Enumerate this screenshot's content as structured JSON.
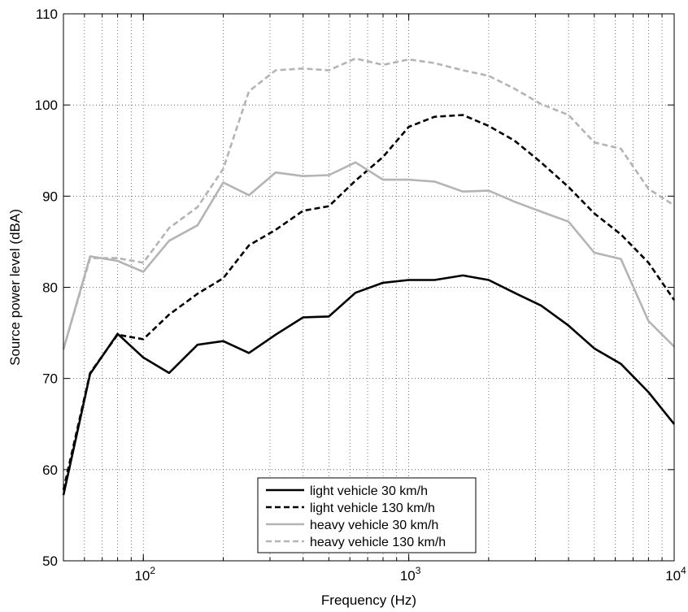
{
  "chart_data": {
    "type": "line",
    "xlabel": "Frequency (Hz)",
    "ylabel": "Source power level (dBA)",
    "xscale": "log",
    "xlim": [
      50,
      10000
    ],
    "ylim": [
      50,
      110
    ],
    "grid": true,
    "legend_position": "bottom-center",
    "x_ticks": [
      {
        "value": 100,
        "base": "10",
        "exp": "2"
      },
      {
        "value": 1000,
        "base": "10",
        "exp": "3"
      },
      {
        "value": 10000,
        "base": "10",
        "exp": "4"
      }
    ],
    "y_ticks": [
      50,
      60,
      70,
      80,
      90,
      100,
      110
    ],
    "x": [
      50,
      63,
      80,
      100,
      125,
      160,
      200,
      250,
      315,
      400,
      500,
      630,
      800,
      1000,
      1250,
      1600,
      2000,
      2500,
      3150,
      4000,
      5000,
      6300,
      8000,
      10000
    ],
    "series": [
      {
        "name": "light vehicle 30 km/h",
        "color": "#000000",
        "dash": "solid",
        "values": [
          57.2,
          70.5,
          74.9,
          72.3,
          70.6,
          73.7,
          74.1,
          72.8,
          74.8,
          76.7,
          76.8,
          79.4,
          80.5,
          80.8,
          80.8,
          81.3,
          80.8,
          79.4,
          78.0,
          75.8,
          73.3,
          71.6,
          68.5,
          65.0
        ]
      },
      {
        "name": "light vehicle 130 km/h",
        "color": "#000000",
        "dash": "dashed",
        "values": [
          57.8,
          70.6,
          74.8,
          74.3,
          77.0,
          79.3,
          81.0,
          84.6,
          86.3,
          88.4,
          88.9,
          91.7,
          94.3,
          97.6,
          98.7,
          98.9,
          97.7,
          96.1,
          93.7,
          91.0,
          88.1,
          85.8,
          82.7,
          78.6
        ]
      },
      {
        "name": "heavy vehicle 30 km/h",
        "color": "#b4b4b4",
        "dash": "solid",
        "values": [
          73.2,
          83.4,
          82.9,
          81.7,
          85.1,
          86.8,
          91.5,
          90.1,
          92.6,
          92.2,
          92.3,
          93.7,
          91.8,
          91.8,
          91.6,
          90.5,
          90.6,
          89.4,
          88.3,
          87.2,
          83.8,
          83.1,
          76.3,
          73.5
        ]
      },
      {
        "name": "heavy vehicle 130 km/h",
        "color": "#b4b4b4",
        "dash": "dashed",
        "values": [
          73.2,
          83.2,
          83.2,
          82.7,
          86.5,
          88.8,
          93.0,
          101.5,
          103.8,
          104.0,
          103.8,
          105.1,
          104.4,
          105.0,
          104.6,
          103.8,
          103.2,
          101.8,
          100.1,
          98.9,
          95.9,
          95.2,
          90.8,
          89.0
        ]
      }
    ]
  }
}
